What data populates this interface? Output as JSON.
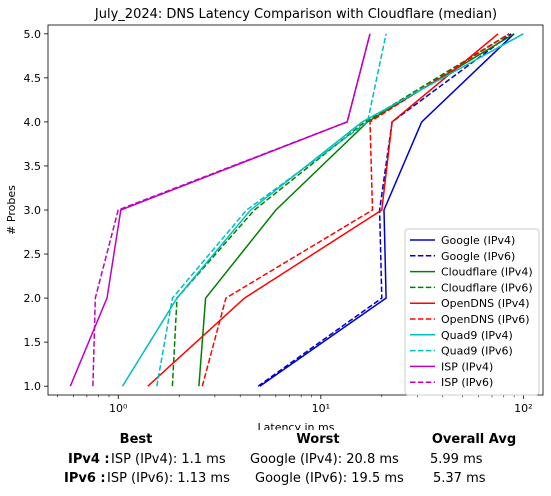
{
  "chart_data": {
    "type": "line",
    "title": "July_2024: DNS Latency Comparison with Cloudflare (median)",
    "xlabel": "Latency in ms",
    "ylabel": "# Probes",
    "xscale": "log",
    "xlim": [
      0.45,
      125
    ],
    "ylim": [
      0.9,
      5.1
    ],
    "xtick_labels": [
      {
        "v": 1,
        "label": "10⁰"
      },
      {
        "v": 10,
        "label": "10¹"
      },
      {
        "v": 100,
        "label": "10²"
      }
    ],
    "yticks": [
      1.0,
      1.5,
      2.0,
      2.5,
      3.0,
      3.5,
      4.0,
      4.5,
      5.0
    ],
    "ytick_labels": [
      "1.0",
      "1.5",
      "2.0",
      "2.5",
      "3.0",
      "3.5",
      "4.0",
      "4.5",
      "5.0"
    ],
    "grid": false,
    "legend_position": "lower-right",
    "y": [
      1,
      2,
      3,
      4,
      5
    ],
    "series": [
      {
        "name": "Google (IPv4)",
        "color": "#0000cc",
        "dash": "solid",
        "x": [
          5.0,
          21.0,
          20.5,
          31.5,
          90.0
        ]
      },
      {
        "name": "Google (IPv6)",
        "color": "#0000cc",
        "dash": "dashed",
        "x": [
          4.9,
          20.0,
          19.5,
          22.5,
          87.0
        ]
      },
      {
        "name": "Cloudflare (IPv4)",
        "color": "#008000",
        "dash": "solid",
        "x": [
          2.5,
          2.7,
          6.0,
          17.0,
          90.0
        ]
      },
      {
        "name": "Cloudflare (IPv6)",
        "color": "#008000",
        "dash": "dashed",
        "x": [
          1.85,
          1.95,
          4.7,
          16.5,
          85.0
        ]
      },
      {
        "name": "OpenDNS (IPv4)",
        "color": "#ff0000",
        "dash": "solid",
        "x": [
          1.4,
          4.2,
          20.0,
          22.5,
          75.0
        ]
      },
      {
        "name": "OpenDNS (IPv6)",
        "color": "#ff0000",
        "dash": "dashed",
        "x": [
          2.6,
          3.4,
          18.0,
          17.5,
          85.0
        ]
      },
      {
        "name": "Quad9 (IPv4)",
        "color": "#00bfbf",
        "dash": "solid",
        "x": [
          1.05,
          1.95,
          4.5,
          16.0,
          100.0
        ]
      },
      {
        "name": "Quad9 (IPv6)",
        "color": "#00bfbf",
        "dash": "dashed",
        "x": [
          1.55,
          1.85,
          4.3,
          17.0,
          21.0
        ]
      },
      {
        "name": "ISP (IPv4)",
        "color": "#bf00bf",
        "dash": "solid",
        "x": [
          0.58,
          0.88,
          1.03,
          13.5,
          17.5
        ]
      },
      {
        "name": "ISP (IPv6)",
        "color": "#bf00bf",
        "dash": "dashed",
        "x": [
          0.75,
          0.77,
          1.0,
          13.5,
          17.5
        ]
      }
    ]
  },
  "summary": {
    "headers": {
      "best": "Best",
      "worst": "Worst",
      "avg": "Overall Avg"
    },
    "rows": [
      {
        "label": "IPv4 :",
        "best": "ISP (IPv4): 1.1 ms",
        "worst": "Google (IPv4): 20.8 ms",
        "avg": "5.99 ms"
      },
      {
        "label": "IPv6 :",
        "best": "ISP (IPv6): 1.13 ms",
        "worst": "Google (IPv6): 19.5 ms",
        "avg": "5.37 ms"
      }
    ]
  }
}
